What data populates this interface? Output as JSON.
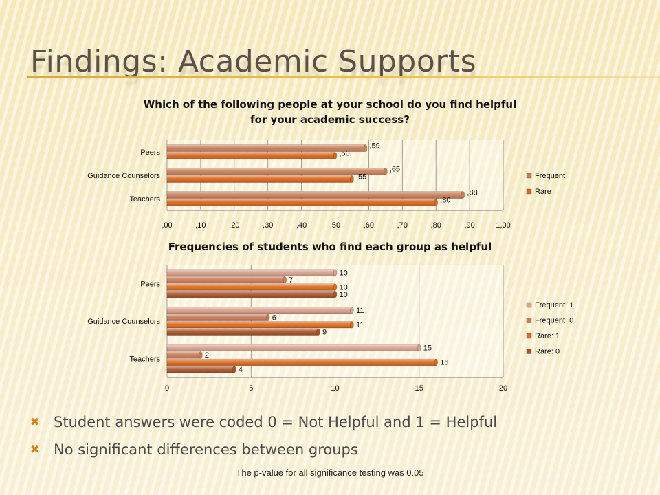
{
  "slide": {
    "title": "Findings: Academic Supports",
    "bullets": [
      "Student answers were coded 0 = Not Helpful and 1 = Helpful",
      "No significant differences between groups"
    ],
    "footnote": "The p-value for all significance testing was 0.05"
  },
  "chart_data": [
    {
      "type": "bar",
      "orientation": "horizontal",
      "title": "Which of the following people at your school do you find helpful for your academic success?",
      "title_lines": [
        "Which of the following people at your school do you find helpful",
        "for your academic success?"
      ],
      "categories": [
        "Peers",
        "Guidance Counselors",
        "Teachers"
      ],
      "series": [
        {
          "name": "Frequent",
          "values": [
            0.59,
            0.65,
            0.88
          ],
          "labels": [
            ",59",
            ",65",
            ",88"
          ],
          "color": "#c8805a"
        },
        {
          "name": "Rare",
          "values": [
            0.5,
            0.55,
            0.8
          ],
          "labels": [
            ",50",
            ",55",
            ",80"
          ],
          "color": "#d9661c"
        }
      ],
      "xlim": [
        0,
        1
      ],
      "ticks": [
        0,
        0.1,
        0.2,
        0.3,
        0.4,
        0.5,
        0.6,
        0.7,
        0.8,
        0.9,
        1.0
      ],
      "tick_labels": [
        ",00",
        ",10",
        ",20",
        ",30",
        ",40",
        ",50",
        ",60",
        ",70",
        ",80",
        ",90",
        "1,00"
      ],
      "grid": true,
      "legend": "right"
    },
    {
      "type": "bar",
      "orientation": "horizontal",
      "title": "Frequencies of students who find each group as helpful",
      "categories": [
        "Peers",
        "Guidance Counselors",
        "Teachers"
      ],
      "series": [
        {
          "name": "Frequent: 1",
          "values": [
            10,
            11,
            15
          ],
          "color": "#d9a28e"
        },
        {
          "name": "Frequent: 0",
          "values": [
            7,
            6,
            2
          ],
          "color": "#c97b58"
        },
        {
          "name": "Rare: 1",
          "values": [
            10,
            11,
            16
          ],
          "color": "#de6a1e"
        },
        {
          "name": "Rare: 0",
          "values": [
            10,
            9,
            4
          ],
          "color": "#a9532a"
        }
      ],
      "xlim": [
        0,
        20
      ],
      "ticks": [
        0,
        5,
        10,
        15,
        20
      ],
      "tick_labels": [
        "0",
        "5",
        "10",
        "15",
        "20"
      ],
      "grid": true,
      "legend": "right"
    }
  ]
}
